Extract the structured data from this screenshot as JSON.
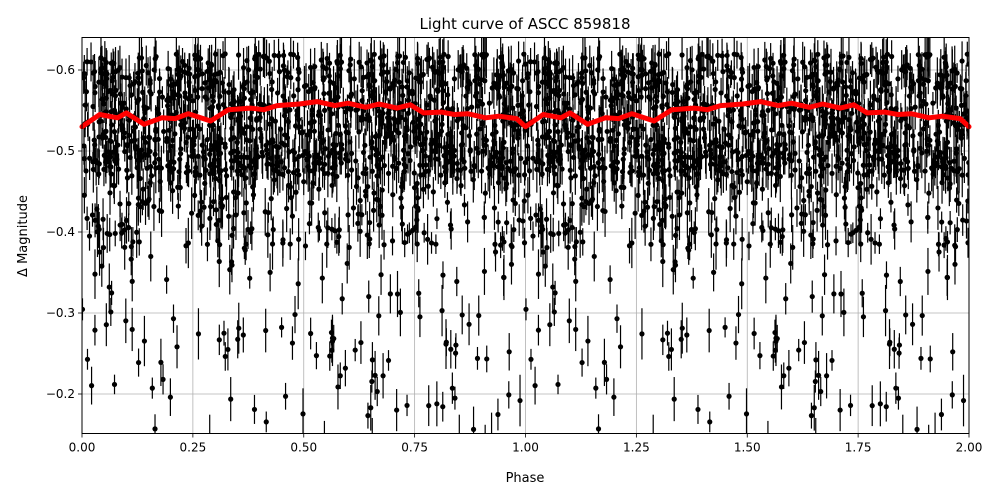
{
  "chart_data": {
    "type": "scatter",
    "title": "Light curve of ASCC 859818",
    "xlabel": "Phase",
    "ylabel": "Δ Magnitude",
    "xlim": [
      0.0,
      2.0
    ],
    "ylim": [
      -0.14,
      -0.64
    ],
    "y_inverted": true,
    "grid": true,
    "x_ticks": [
      "0.00",
      "0.25",
      "0.50",
      "0.75",
      "1.00",
      "1.25",
      "1.50",
      "1.75",
      "2.00"
    ],
    "x_tick_values": [
      0.0,
      0.25,
      0.5,
      0.75,
      1.0,
      1.25,
      1.5,
      1.75,
      2.0
    ],
    "y_ticks": [
      "−0.6",
      "−0.5",
      "−0.4",
      "−0.3",
      "−0.2"
    ],
    "y_tick_values": [
      -0.6,
      -0.5,
      -0.4,
      -0.3,
      -0.2
    ],
    "series": [
      {
        "name": "observations",
        "style": "black points with vertical error bars",
        "color": "#000000",
        "description": "Dense scatter concentrated between -0.62 and -0.45, with sparse tail of fainter points down to -0.14; pattern repeats with period 1.0 in phase",
        "core_band": [
          -0.62,
          -0.45
        ],
        "typical_error": 0.02
      },
      {
        "name": "binned mean",
        "style": "thick red line",
        "color": "#ff0000",
        "phase": [
          0.0,
          0.04,
          0.08,
          0.1,
          0.14,
          0.18,
          0.21,
          0.24,
          0.29,
          0.33,
          0.38,
          0.41,
          0.44,
          0.49,
          0.53,
          0.57,
          0.6,
          0.64,
          0.67,
          0.71,
          0.74,
          0.77,
          0.81,
          0.84,
          0.87,
          0.91,
          0.94,
          0.98,
          1.0
        ],
        "magnitude": [
          -0.53,
          -0.545,
          -0.541,
          -0.547,
          -0.533,
          -0.541,
          -0.54,
          -0.546,
          -0.537,
          -0.551,
          -0.553,
          -0.551,
          -0.556,
          -0.558,
          -0.561,
          -0.556,
          -0.559,
          -0.554,
          -0.558,
          -0.553,
          -0.557,
          -0.547,
          -0.548,
          -0.545,
          -0.546,
          -0.541,
          -0.543,
          -0.54,
          -0.53
        ],
        "repeats_over": [
          0,
          2
        ]
      }
    ]
  }
}
